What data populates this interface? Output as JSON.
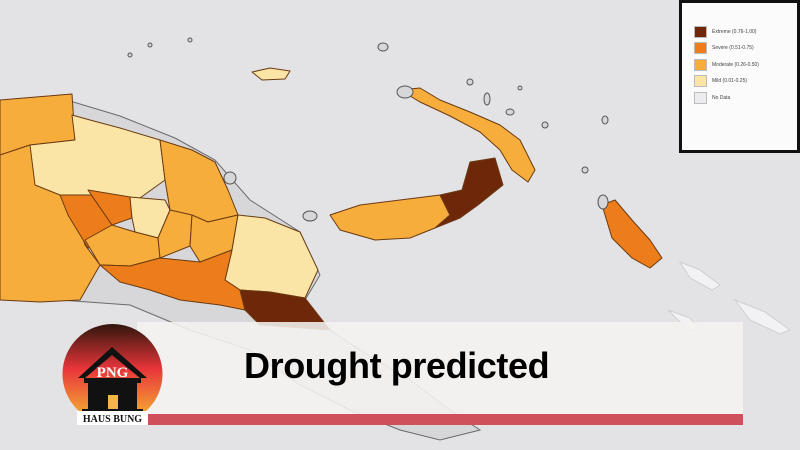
{
  "headline": "Drought predicted",
  "legend": {
    "items": [
      {
        "label": "Extreme (0.76-1.00)",
        "color": "#6f2709"
      },
      {
        "label": "Severe (0.51-0.75)",
        "color": "#ed7d1b"
      },
      {
        "label": "Moderate (0.26-0.50)",
        "color": "#f7ad3b"
      },
      {
        "label": "Mild (0.01-0.25)",
        "color": "#fbe5a6"
      },
      {
        "label": "No Data",
        "color": "#ececee"
      }
    ]
  },
  "map": {
    "sea_color": "#e3e3e5",
    "land_no_data_color": "#d7d7d9",
    "regions": [
      {
        "name": "west-sepik",
        "category": "Moderate"
      },
      {
        "name": "western-province",
        "category": "Moderate"
      },
      {
        "name": "sandaun-inland",
        "category": "Severe"
      },
      {
        "name": "east-sepik",
        "category": "Mild"
      },
      {
        "name": "madang",
        "category": "Moderate"
      },
      {
        "name": "enga",
        "category": "Severe"
      },
      {
        "name": "highlands-central",
        "category": "Mild"
      },
      {
        "name": "southern-highlands",
        "category": "Moderate"
      },
      {
        "name": "chimbu",
        "category": "Moderate"
      },
      {
        "name": "eastern-highlands",
        "category": "Moderate"
      },
      {
        "name": "morobe",
        "category": "Mild"
      },
      {
        "name": "gulf",
        "category": "Severe"
      },
      {
        "name": "central",
        "category": "Extreme"
      },
      {
        "name": "west-new-britain",
        "category": "Moderate"
      },
      {
        "name": "east-new-britain",
        "category": "Extreme"
      },
      {
        "name": "new-ireland",
        "category": "Moderate"
      },
      {
        "name": "bougainville",
        "category": "Severe"
      },
      {
        "name": "manus",
        "category": "Mild"
      }
    ]
  },
  "logo": {
    "text": "PNG",
    "subtext": "HAUS BUNG"
  }
}
